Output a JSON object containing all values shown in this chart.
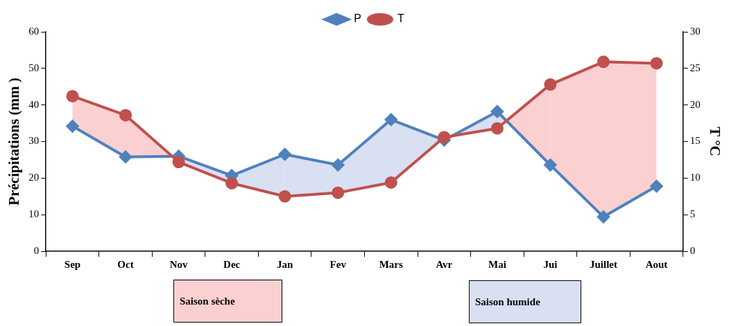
{
  "chart_data": {
    "type": "line",
    "categories": [
      "Sep",
      "Oct",
      "Nov",
      "Dec",
      "Jan",
      "Fev",
      "Mars",
      "Avr",
      "Mai",
      "Jui",
      "Juillet",
      "Aout"
    ],
    "ylabel": "Précipitations (mm )",
    "y2label": "T °C",
    "ylim": [
      0,
      60
    ],
    "yticks": [
      0,
      10,
      20,
      30,
      40,
      50,
      60
    ],
    "y2lim": [
      0,
      30
    ],
    "y2ticks": [
      0,
      5,
      10,
      15,
      20,
      25,
      30
    ],
    "legend": "top",
    "grid": false,
    "line_style": "solid",
    "annotations": [
      "Saison sèche",
      "Saison humide"
    ],
    "series": [
      {
        "name": "P",
        "color": "#4f81bd",
        "marker": "diamond",
        "values": [
          34.2,
          25.8,
          26,
          20.7,
          26.5,
          23.6,
          36,
          30.4,
          38.2,
          23.6,
          9.4,
          17.8
        ]
      },
      {
        "name": "T",
        "color": "#c0504d",
        "marker": "circle",
        "axis": "y2",
        "values": [
          21.2,
          18.6,
          12.2,
          9.3,
          7.5,
          8,
          9.4,
          15.6,
          16.8,
          22.8,
          25.9,
          25.7
        ]
      }
    ]
  }
}
